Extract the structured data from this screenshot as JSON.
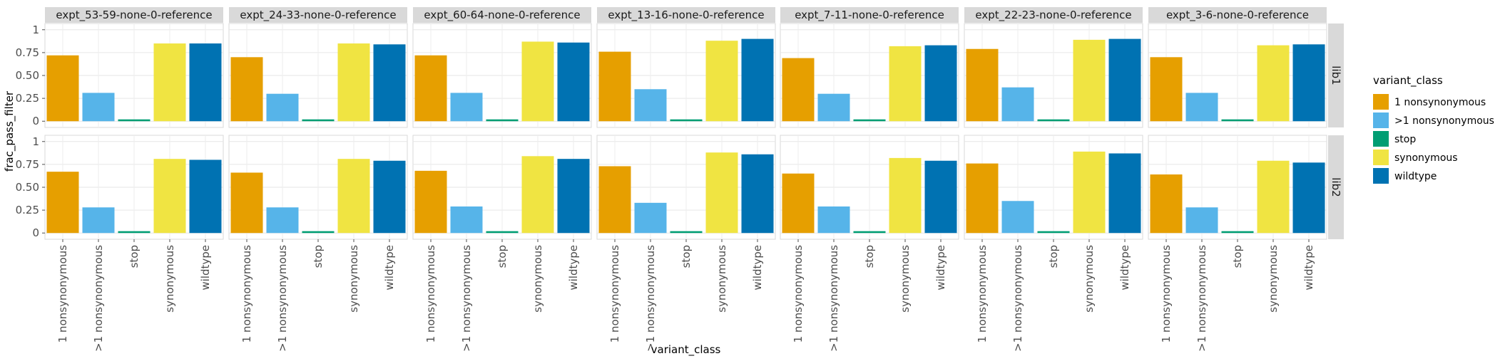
{
  "chart_data": {
    "type": "bar",
    "xlabel": "variant_class",
    "ylabel": "frac_pass_filter",
    "ylim": [
      0,
      1
    ],
    "yticks": [
      0,
      0.25,
      0.5,
      0.75,
      1
    ],
    "ytick_labels": [
      "0",
      "0.25",
      "0.50",
      "0.75",
      "1"
    ],
    "categories": [
      "1 nonsynonymous",
      ">1 nonsynonymous",
      "stop",
      "synonymous",
      "wildtype"
    ],
    "colors": {
      "1 nonsynonymous": "#E69F00",
      ">1 nonsynonymous": "#56B4E9",
      "stop": "#009E73",
      "synonymous": "#F0E442",
      "wildtype": "#0072B2"
    },
    "legend": {
      "title": "variant_class",
      "position": "right",
      "entries": [
        "1 nonsynonymous",
        ">1 nonsynonymous",
        "stop",
        "synonymous",
        "wildtype"
      ]
    },
    "grid": true,
    "facet_columns": [
      "expt_53-59-none-0-reference",
      "expt_24-33-none-0-reference",
      "expt_60-64-none-0-reference",
      "expt_13-16-none-0-reference",
      "expt_7-11-none-0-reference",
      "expt_22-23-none-0-reference",
      "expt_3-6-none-0-reference"
    ],
    "facet_rows": [
      "lib1",
      "lib2"
    ],
    "panels": [
      {
        "column": "expt_53-59-none-0-reference",
        "row": "lib1",
        "values": [
          0.72,
          0.31,
          0.02,
          0.85,
          0.85
        ]
      },
      {
        "column": "expt_24-33-none-0-reference",
        "row": "lib1",
        "values": [
          0.7,
          0.3,
          0.02,
          0.85,
          0.84
        ]
      },
      {
        "column": "expt_60-64-none-0-reference",
        "row": "lib1",
        "values": [
          0.72,
          0.31,
          0.02,
          0.87,
          0.86
        ]
      },
      {
        "column": "expt_13-16-none-0-reference",
        "row": "lib1",
        "values": [
          0.76,
          0.35,
          0.02,
          0.88,
          0.9
        ]
      },
      {
        "column": "expt_7-11-none-0-reference",
        "row": "lib1",
        "values": [
          0.69,
          0.3,
          0.02,
          0.82,
          0.83
        ]
      },
      {
        "column": "expt_22-23-none-0-reference",
        "row": "lib1",
        "values": [
          0.79,
          0.37,
          0.02,
          0.89,
          0.9
        ]
      },
      {
        "column": "expt_3-6-none-0-reference",
        "row": "lib1",
        "values": [
          0.7,
          0.31,
          0.02,
          0.83,
          0.84
        ]
      },
      {
        "column": "expt_53-59-none-0-reference",
        "row": "lib2",
        "values": [
          0.67,
          0.28,
          0.02,
          0.81,
          0.8
        ]
      },
      {
        "column": "expt_24-33-none-0-reference",
        "row": "lib2",
        "values": [
          0.66,
          0.28,
          0.02,
          0.81,
          0.79
        ]
      },
      {
        "column": "expt_60-64-none-0-reference",
        "row": "lib2",
        "values": [
          0.68,
          0.29,
          0.02,
          0.84,
          0.81
        ]
      },
      {
        "column": "expt_13-16-none-0-reference",
        "row": "lib2",
        "values": [
          0.73,
          0.33,
          0.02,
          0.88,
          0.86
        ]
      },
      {
        "column": "expt_7-11-none-0-reference",
        "row": "lib2",
        "values": [
          0.65,
          0.29,
          0.02,
          0.82,
          0.79
        ]
      },
      {
        "column": "expt_22-23-none-0-reference",
        "row": "lib2",
        "values": [
          0.76,
          0.35,
          0.02,
          0.89,
          0.87
        ]
      },
      {
        "column": "expt_3-6-none-0-reference",
        "row": "lib2",
        "values": [
          0.64,
          0.28,
          0.02,
          0.79,
          0.77
        ]
      }
    ]
  }
}
